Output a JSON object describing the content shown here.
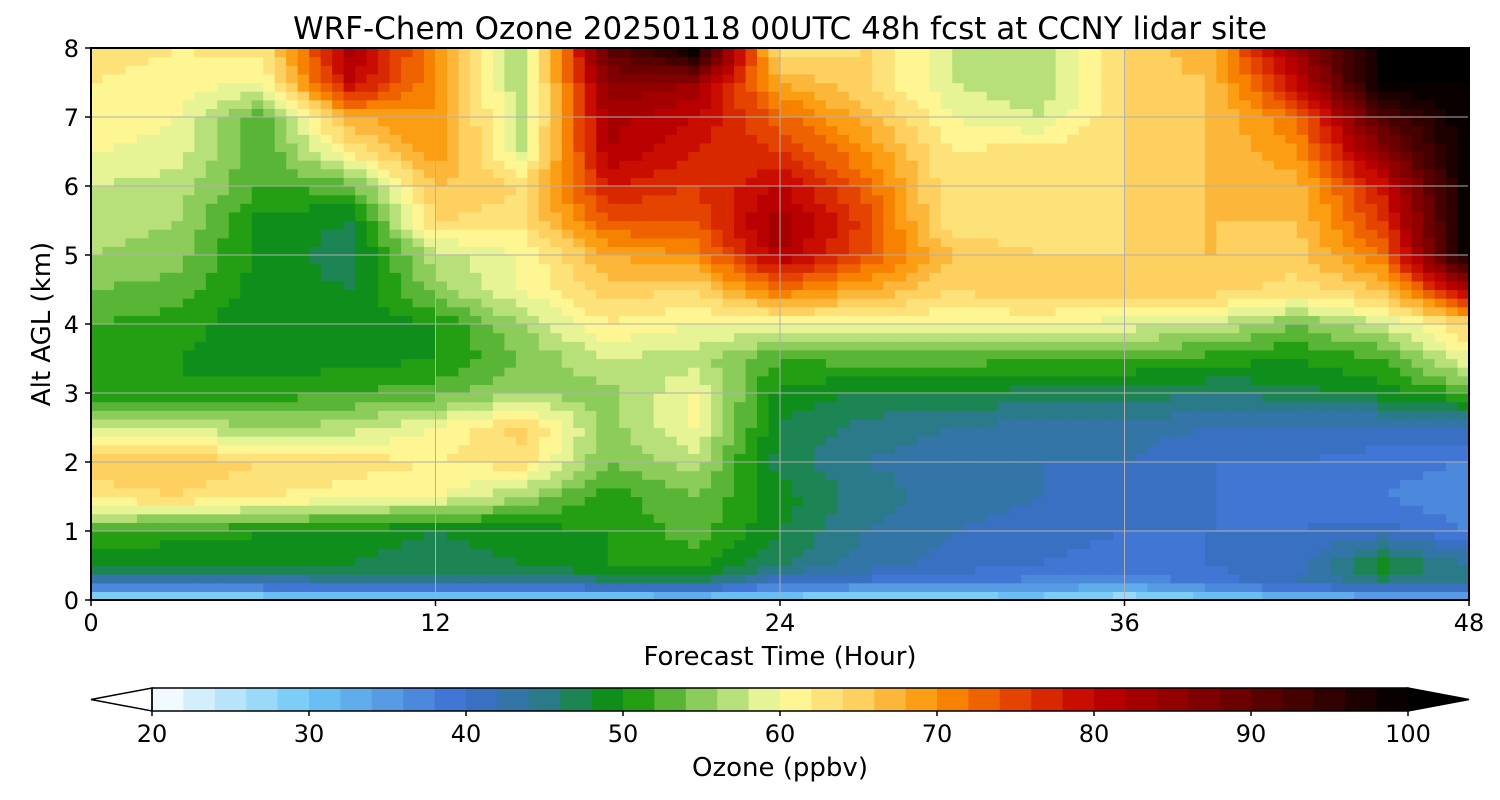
{
  "chart_data": {
    "type": "heatmap",
    "title": "WRF-Chem Ozone  20250118 00UTC 48h fcst at CCNY lidar site",
    "xlabel": "Forecast Time (Hour)",
    "ylabel": "Alt AGL (km)",
    "xlim": [
      0,
      48
    ],
    "ylim": [
      0,
      8
    ],
    "x_ticks": [
      0,
      12,
      24,
      36,
      48
    ],
    "y_ticks": [
      0,
      1,
      2,
      3,
      4,
      5,
      6,
      7,
      8
    ],
    "grid": true,
    "x": [
      0,
      3,
      6,
      9,
      12,
      15,
      18,
      21,
      24,
      27,
      30,
      33,
      36,
      39,
      42,
      45,
      48
    ],
    "y": [
      0,
      0.25,
      0.5,
      1,
      1.5,
      2,
      2.5,
      3,
      3.5,
      4,
      4.5,
      5,
      5.5,
      6,
      6.5,
      7,
      7.5,
      8
    ],
    "z": [
      [
        25,
        25,
        26,
        26,
        26,
        26,
        27,
        28,
        27,
        26,
        27,
        28,
        25,
        28,
        30,
        31,
        32
      ],
      [
        40,
        41,
        42,
        43,
        44,
        43,
        45,
        46,
        40,
        39,
        38,
        37,
        36,
        39,
        42,
        45,
        44
      ],
      [
        48,
        48,
        49,
        48,
        47,
        48,
        50,
        51,
        46,
        43,
        41,
        40,
        39,
        40,
        41,
        49,
        44
      ],
      [
        52,
        51,
        50,
        49,
        48,
        49,
        50,
        53,
        48,
        44,
        42,
        41,
        40,
        40,
        40,
        41,
        38
      ],
      [
        63,
        64,
        62,
        61,
        60,
        56,
        51,
        54,
        49,
        45,
        43,
        42,
        41,
        40,
        39,
        38,
        36
      ],
      [
        65,
        66,
        64,
        63,
        62,
        63,
        54,
        57,
        47,
        44,
        43,
        42,
        42,
        40,
        40,
        39,
        38
      ],
      [
        58,
        58,
        56,
        57,
        60,
        65,
        55,
        60,
        48,
        45,
        44,
        43,
        43,
        42,
        42,
        41,
        42
      ],
      [
        51,
        50,
        51,
        52,
        53,
        56,
        55,
        60,
        49,
        48,
        48,
        47,
        47,
        46,
        47,
        49,
        52
      ],
      [
        51,
        50,
        49,
        49,
        50,
        54,
        58,
        57,
        52,
        53,
        53,
        52,
        52,
        51,
        50,
        52,
        60
      ],
      [
        52,
        51,
        48,
        48,
        50,
        56,
        62,
        60,
        60,
        60,
        60,
        60,
        59,
        58,
        54,
        58,
        64
      ],
      [
        54,
        53,
        49,
        48,
        55,
        60,
        65,
        64,
        72,
        68,
        64,
        66,
        65,
        65,
        63,
        66,
        82
      ],
      [
        56,
        55,
        49,
        47,
        57,
        60,
        68,
        70,
        82,
        74,
        66,
        64,
        64,
        66,
        65,
        72,
        100
      ],
      [
        57,
        56,
        49,
        48,
        64,
        63,
        74,
        74,
        84,
        75,
        62,
        63,
        64,
        66,
        66,
        76,
        100
      ],
      [
        58,
        57,
        52,
        53,
        66,
        64,
        78,
        76,
        80,
        73,
        62,
        63,
        64,
        66,
        67,
        79,
        100
      ],
      [
        60,
        59,
        52,
        62,
        70,
        58,
        82,
        78,
        76,
        70,
        62,
        63,
        64,
        66,
        70,
        86,
        100
      ],
      [
        62,
        60,
        52,
        68,
        70,
        57,
        83,
        80,
        73,
        67,
        60,
        58,
        64,
        66,
        72,
        92,
        100
      ],
      [
        62,
        61,
        60,
        80,
        70,
        56,
        86,
        84,
        68,
        64,
        58,
        56,
        64,
        66,
        80,
        100,
        100
      ],
      [
        63,
        62,
        63,
        83,
        70,
        56,
        90,
        100,
        62,
        64,
        58,
        56,
        64,
        68,
        84,
        100,
        100
      ]
    ],
    "colorbar": {
      "label": "Ozone  (ppbv)",
      "min": 20,
      "max": 100,
      "ticks": [
        20,
        30,
        40,
        50,
        60,
        70,
        80,
        90,
        100
      ],
      "extend": "both",
      "colors": [
        {
          "v": 20,
          "c": "#ffffff"
        },
        {
          "v": 30,
          "c": "#6ec8f5"
        },
        {
          "v": 40,
          "c": "#3d6dd0"
        },
        {
          "v": 45,
          "c": "#2a7a8a"
        },
        {
          "v": 50,
          "c": "#0a9300"
        },
        {
          "v": 55,
          "c": "#8ccc5a"
        },
        {
          "v": 58,
          "c": "#cdea8a"
        },
        {
          "v": 60,
          "c": "#fefea0"
        },
        {
          "v": 65,
          "c": "#fdd060"
        },
        {
          "v": 70,
          "c": "#fb9100"
        },
        {
          "v": 75,
          "c": "#e54300"
        },
        {
          "v": 80,
          "c": "#c20000"
        },
        {
          "v": 90,
          "c": "#620000"
        },
        {
          "v": 100,
          "c": "#000000"
        }
      ]
    }
  }
}
